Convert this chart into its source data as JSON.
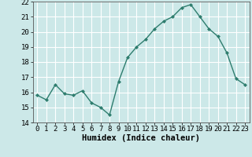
{
  "x": [
    0,
    1,
    2,
    3,
    4,
    5,
    6,
    7,
    8,
    9,
    10,
    11,
    12,
    13,
    14,
    15,
    16,
    17,
    18,
    19,
    20,
    21,
    22,
    23
  ],
  "y": [
    15.8,
    15.5,
    16.5,
    15.9,
    15.8,
    16.1,
    15.3,
    15.0,
    14.5,
    16.7,
    18.3,
    19.0,
    19.5,
    20.2,
    20.7,
    21.0,
    21.6,
    21.8,
    21.0,
    20.2,
    19.7,
    18.6,
    16.9,
    16.5
  ],
  "line_color": "#2e7d6e",
  "marker": "D",
  "marker_size": 2.0,
  "bg_color": "#cce8e8",
  "grid_color": "#ffffff",
  "xlabel": "Humidex (Indice chaleur)",
  "ylim": [
    14,
    22
  ],
  "xlim": [
    -0.5,
    23.5
  ],
  "yticks": [
    14,
    15,
    16,
    17,
    18,
    19,
    20,
    21,
    22
  ],
  "xticks": [
    0,
    1,
    2,
    3,
    4,
    5,
    6,
    7,
    8,
    9,
    10,
    11,
    12,
    13,
    14,
    15,
    16,
    17,
    18,
    19,
    20,
    21,
    22,
    23
  ],
  "xlabel_fontsize": 7.5,
  "tick_fontsize": 6.5,
  "line_width": 1.0
}
